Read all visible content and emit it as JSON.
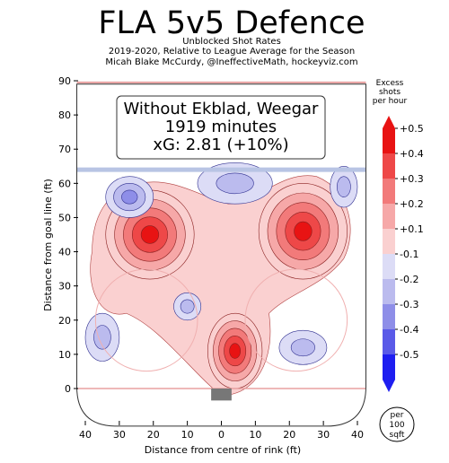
{
  "chart_data": {
    "type": "heatmap",
    "title": "FLA 5v5 Defence",
    "subtitle_lines": [
      "Unblocked Shot Rates",
      "2019-2020, Relative to League Average for the Season",
      "Micah Blake McCurdy, @IneffectiveMath, hockeyviz.com"
    ],
    "annotation_lines": [
      "Without Ekblad, Weegar",
      "1919 minutes",
      "xG: 2.81 (+10%)"
    ],
    "xlabel": "Distance from centre of rink (ft)",
    "ylabel": "Distance from goal line (ft)",
    "xlim": [
      -42,
      42
    ],
    "ylim": [
      -11,
      91
    ],
    "x_ticks": [
      {
        "value": -40,
        "label": "40"
      },
      {
        "value": -30,
        "label": "30"
      },
      {
        "value": -20,
        "label": "20"
      },
      {
        "value": -10,
        "label": "10"
      },
      {
        "value": 0,
        "label": "0"
      },
      {
        "value": 10,
        "label": "10"
      },
      {
        "value": 20,
        "label": "20"
      },
      {
        "value": 30,
        "label": "30"
      },
      {
        "value": 40,
        "label": "40"
      }
    ],
    "y_ticks": [
      0,
      10,
      20,
      30,
      40,
      50,
      60,
      70,
      80,
      90
    ],
    "blue_line_y": 64,
    "colorbar": {
      "title_lines": [
        "Excess",
        "shots",
        "per hour"
      ],
      "levels": [
        0.5,
        0.4,
        0.3,
        0.2,
        0.1,
        -0.1,
        -0.2,
        -0.3,
        -0.4,
        -0.5
      ],
      "labels": [
        "+0.5",
        "+0.4",
        "+0.3",
        "+0.2",
        "+0.1",
        "-0.1",
        "-0.2",
        "-0.3",
        "-0.4",
        "-0.5"
      ],
      "colors": {
        "+0.5": "#e81313",
        "+0.4": "#ee4848",
        "+0.3": "#f27a7a",
        "+0.2": "#f6a8a8",
        "+0.1": "#fad0d0",
        "-0.1": "#dcdcf6",
        "-0.2": "#bbbbee",
        "-0.3": "#8e8ee8",
        "-0.4": "#5a5ae8",
        "-0.5": "#1e1ef0"
      }
    },
    "unit_badge_lines": [
      "per",
      "100",
      "sqft"
    ],
    "hotspots": [
      {
        "name": "left-high-slot",
        "x": -21,
        "y": 45,
        "peak": 0.5,
        "rx": 13,
        "ry": 13
      },
      {
        "name": "right-point",
        "x": 24,
        "y": 46,
        "peak": 0.5,
        "rx": 13,
        "ry": 14
      },
      {
        "name": "net-front",
        "x": 4,
        "y": 11,
        "peak": 0.45,
        "rx": 8,
        "ry": 11
      },
      {
        "name": "left-upper-cold",
        "x": -27,
        "y": 56,
        "peak": -0.3,
        "rx": 7,
        "ry": 6
      },
      {
        "name": "centre-upper-cold",
        "x": 4,
        "y": 60,
        "peak": -0.2,
        "rx": 11,
        "ry": 6
      },
      {
        "name": "right-upper-cold",
        "x": 36,
        "y": 59,
        "peak": -0.2,
        "rx": 4,
        "ry": 6
      },
      {
        "name": "left-lower-cold",
        "x": -35,
        "y": 15,
        "peak": -0.2,
        "rx": 5,
        "ry": 7
      },
      {
        "name": "slot-cold",
        "x": -10,
        "y": 24,
        "peak": -0.2,
        "rx": 4,
        "ry": 4
      },
      {
        "name": "right-lower-cold",
        "x": 24,
        "y": 12,
        "peak": -0.2,
        "rx": 7,
        "ry": 5
      }
    ]
  }
}
